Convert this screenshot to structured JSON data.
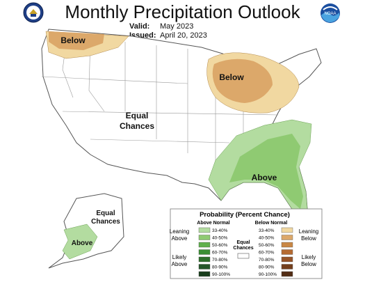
{
  "header": {
    "title": "Monthly Precipitation Outlook",
    "valid_label": "Valid:",
    "valid_value": "May 2023",
    "issued_label": "Issued:",
    "issued_value": "April 20, 2023",
    "noaa_text": "NOAA"
  },
  "map_labels": {
    "below_nw": "Below",
    "below_gl": "Below",
    "above_se": "Above",
    "equal_chances": [
      "Equal",
      "Chances"
    ],
    "ak_equal": [
      "Equal",
      "Chances"
    ],
    "ak_above": "Above"
  },
  "legend": {
    "title": "Probability (Percent Chance)",
    "above_header": "Above Normal",
    "below_header": "Below Normal",
    "equal_label": [
      "Equal",
      "Chances"
    ],
    "leaning_above": [
      "Leaning",
      "Above"
    ],
    "likely_above": [
      "Likely",
      "Above"
    ],
    "leaning_below": [
      "Leaning",
      "Below"
    ],
    "likely_below": [
      "Likely",
      "Below"
    ],
    "bins": [
      "33-40%",
      "40-50%",
      "50-60%",
      "60-70%",
      "70-80%",
      "80-90%",
      "90-100%"
    ],
    "above_colors": [
      "#b3dca0",
      "#8fca72",
      "#5fb04c",
      "#3b8f34",
      "#2e6f2b",
      "#25562a",
      "#173d1b"
    ],
    "below_colors": [
      "#f1d8a1",
      "#dca86a",
      "#c98745",
      "#b56b32",
      "#975428",
      "#743f1d",
      "#522c14"
    ],
    "equal_color": "#ffffff"
  }
}
